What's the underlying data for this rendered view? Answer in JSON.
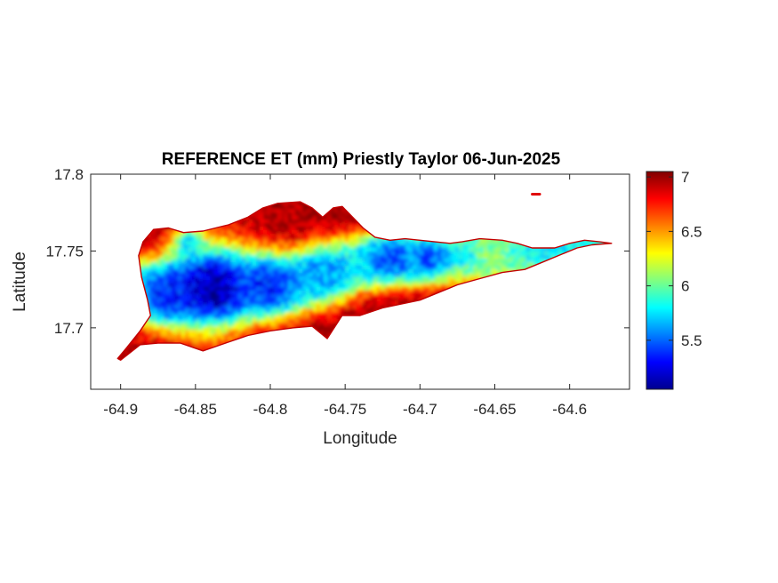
{
  "chart_data": {
    "type": "heatmap",
    "title": "REFERENCE ET (mm) Priestly Taylor 06-Jun-2025",
    "xlabel": "Longitude",
    "ylabel": "Latitude",
    "xlim": [
      -64.92,
      -64.56
    ],
    "ylim": [
      17.66,
      17.8
    ],
    "xticks": [
      -64.9,
      -64.85,
      -64.8,
      -64.75,
      -64.7,
      -64.65,
      -64.6
    ],
    "xtick_labels": [
      "-64.9",
      "-64.85",
      "-64.8",
      "-64.75",
      "-64.7",
      "-64.65",
      "-64.6"
    ],
    "yticks": [
      17.7,
      17.75,
      17.8
    ],
    "ytick_labels": [
      "17.7",
      "17.75",
      "17.8"
    ],
    "colorbar": {
      "range": [
        5.05,
        7.05
      ],
      "ticks": [
        5.5,
        6,
        6.5,
        7
      ],
      "tick_labels": [
        "5.5",
        "6",
        "6.5",
        "7"
      ],
      "colormap": "jet"
    },
    "outline_lonlat": [
      [
        -64.9,
        17.679
      ],
      [
        -64.887,
        17.689
      ],
      [
        -64.875,
        17.69
      ],
      [
        -64.86,
        17.69
      ],
      [
        -64.845,
        17.685
      ],
      [
        -64.83,
        17.69
      ],
      [
        -64.815,
        17.695
      ],
      [
        -64.8,
        17.698
      ],
      [
        -64.785,
        17.7
      ],
      [
        -64.772,
        17.701
      ],
      [
        -64.762,
        17.693
      ],
      [
        -64.752,
        17.708
      ],
      [
        -64.74,
        17.708
      ],
      [
        -64.725,
        17.713
      ],
      [
        -64.71,
        17.716
      ],
      [
        -64.7,
        17.718
      ],
      [
        -64.69,
        17.722
      ],
      [
        -64.675,
        17.728
      ],
      [
        -64.66,
        17.732
      ],
      [
        -64.645,
        17.736
      ],
      [
        -64.63,
        17.738
      ],
      [
        -64.62,
        17.742
      ],
      [
        -64.605,
        17.748
      ],
      [
        -64.595,
        17.752
      ],
      [
        -64.585,
        17.754
      ],
      [
        -64.572,
        17.755
      ],
      [
        -64.58,
        17.756
      ],
      [
        -64.59,
        17.757
      ],
      [
        -64.6,
        17.755
      ],
      [
        -64.61,
        17.752
      ],
      [
        -64.625,
        17.752
      ],
      [
        -64.635,
        17.755
      ],
      [
        -64.645,
        17.757
      ],
      [
        -64.66,
        17.758
      ],
      [
        -64.672,
        17.756
      ],
      [
        -64.68,
        17.755
      ],
      [
        -64.69,
        17.756
      ],
      [
        -64.7,
        17.757
      ],
      [
        -64.71,
        17.758
      ],
      [
        -64.72,
        17.757
      ],
      [
        -64.73,
        17.759
      ],
      [
        -64.738,
        17.765
      ],
      [
        -64.745,
        17.772
      ],
      [
        -64.752,
        17.779
      ],
      [
        -64.758,
        17.778
      ],
      [
        -64.765,
        17.772
      ],
      [
        -64.772,
        17.778
      ],
      [
        -64.78,
        17.782
      ],
      [
        -64.795,
        17.781
      ],
      [
        -64.805,
        17.778
      ],
      [
        -64.815,
        17.772
      ],
      [
        -64.828,
        17.767
      ],
      [
        -64.845,
        17.763
      ],
      [
        -64.858,
        17.762
      ],
      [
        -64.868,
        17.765
      ],
      [
        -64.878,
        17.764
      ],
      [
        -64.885,
        17.756
      ],
      [
        -64.888,
        17.747
      ],
      [
        -64.886,
        17.733
      ],
      [
        -64.882,
        17.718
      ],
      [
        -64.88,
        17.708
      ],
      [
        -64.887,
        17.698
      ],
      [
        -64.896,
        17.687
      ],
      [
        -64.902,
        17.68
      ]
    ],
    "islet_lonlat": [
      [
        -64.625,
        17.787
      ],
      [
        -64.62,
        17.787
      ]
    ],
    "spine_lonlat": [
      [
        -64.89,
        17.725
      ],
      [
        -64.875,
        17.722
      ],
      [
        -64.86,
        17.724
      ],
      [
        -64.84,
        17.725
      ],
      [
        -64.82,
        17.726
      ],
      [
        -64.8,
        17.727
      ],
      [
        -64.78,
        17.73
      ],
      [
        -64.76,
        17.736
      ],
      [
        -64.74,
        17.742
      ],
      [
        -64.72,
        17.746
      ],
      [
        -64.7,
        17.746
      ],
      [
        -64.68,
        17.747
      ],
      [
        -64.66,
        17.748
      ],
      [
        -64.64,
        17.749
      ],
      [
        -64.62,
        17.75
      ],
      [
        -64.6,
        17.753
      ],
      [
        -64.58,
        17.755
      ]
    ],
    "cool_cores": [
      {
        "lon": -64.84,
        "lat": 17.727,
        "value": 5.1,
        "radius_deg": 0.02
      },
      {
        "lon": -64.868,
        "lat": 17.722,
        "value": 5.35,
        "radius_deg": 0.012
      },
      {
        "lon": -64.8,
        "lat": 17.728,
        "value": 5.35,
        "radius_deg": 0.013
      },
      {
        "lon": -64.765,
        "lat": 17.735,
        "value": 5.6,
        "radius_deg": 0.012
      },
      {
        "lon": -64.72,
        "lat": 17.745,
        "value": 5.4,
        "radius_deg": 0.01
      },
      {
        "lon": -64.695,
        "lat": 17.745,
        "value": 5.45,
        "radius_deg": 0.008
      },
      {
        "lon": -64.855,
        "lat": 17.755,
        "value": 5.7,
        "radius_deg": 0.007
      },
      {
        "lon": -64.65,
        "lat": 17.75,
        "value": 6.1,
        "radius_deg": 0.01
      }
    ],
    "field_summary": {
      "value_min": 5.05,
      "value_max": 7.05,
      "low_values_along": "central east-west spine of the island",
      "high_values_along": "north and south coasts and the eastern tip"
    }
  }
}
